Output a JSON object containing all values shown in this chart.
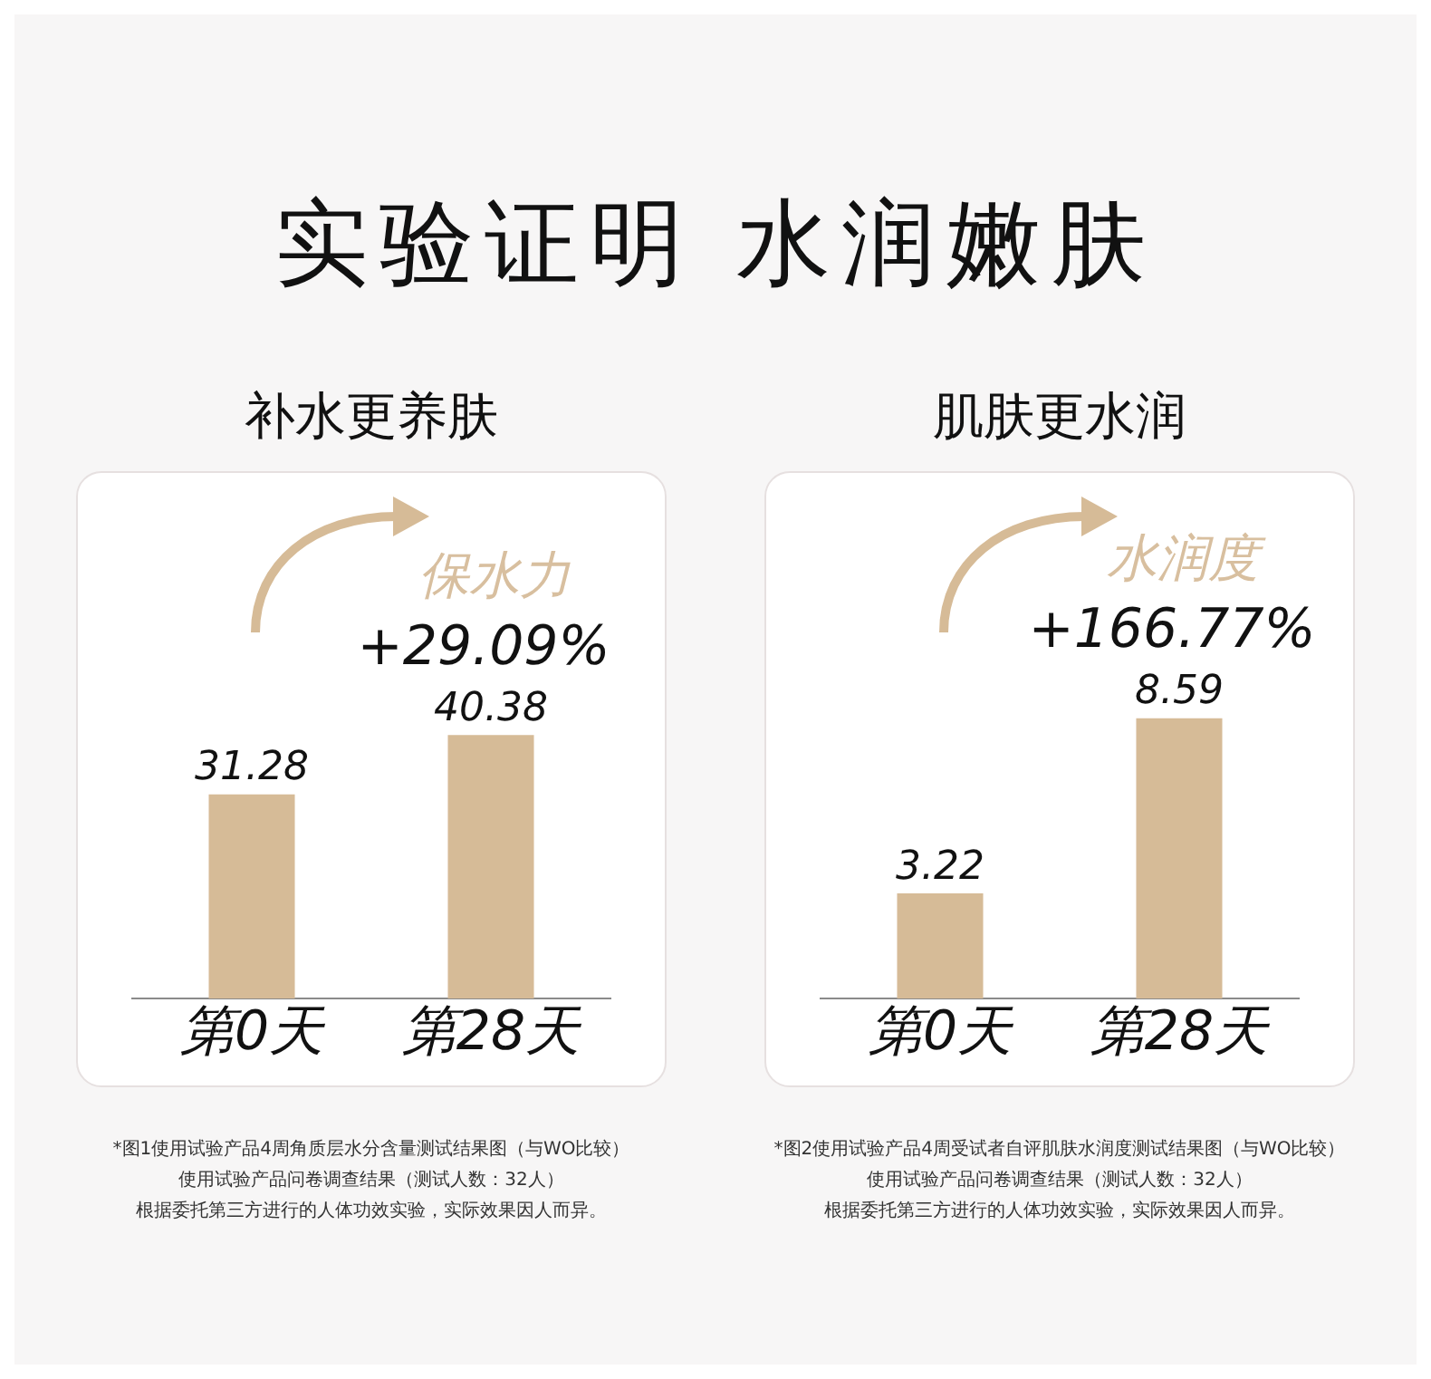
{
  "chart_data": [
    {
      "type": "bar",
      "title": "实验证明 水润嫩肤",
      "subtitle": "补水更养肤",
      "categories": [
        "第0天",
        "第28天"
      ],
      "values": [
        31.28,
        40.38
      ],
      "color": "#d6bb97",
      "data_labels": true,
      "grid": false,
      "legend": false,
      "annotations": [
        "保水力",
        "+29.09%",
        "*图1使用试验产品4周角质层水分含量测试结果图（与WO比较）",
        "使用试验产品问卷调查结果（测试人数：32人）",
        "根据委托第三方进行的人体功效实验，实际效果因人而异。"
      ]
    },
    {
      "type": "bar",
      "subtitle": "肌肤更水润",
      "categories": [
        "第0天",
        "第28天"
      ],
      "values": [
        3.22,
        8.59
      ],
      "color": "#d6bb97",
      "data_labels": true,
      "grid": false,
      "legend": false,
      "annotations": [
        "水润度",
        "+166.77%",
        "*图2使用试验产品4周受试者自评肌肤水润度测试结果图（与WO比较）",
        "使用试验产品问卷调查结果（测试人数：32人）",
        "根据委托第三方进行的人体功效实验，实际效果因人而异。"
      ]
    }
  ]
}
